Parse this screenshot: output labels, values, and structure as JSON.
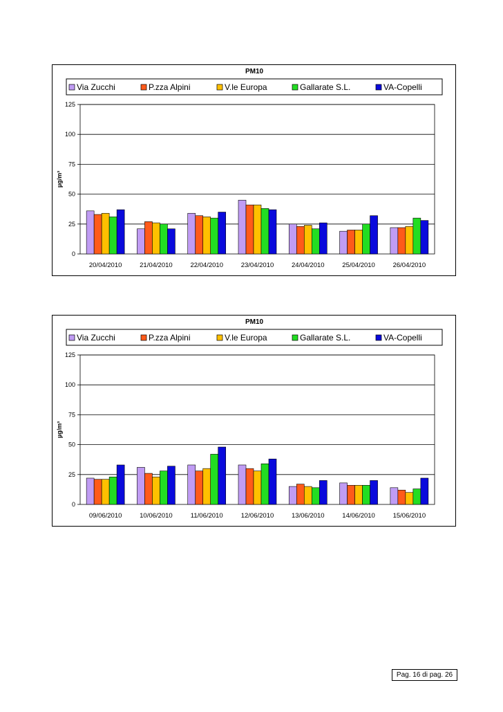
{
  "charts": [
    {
      "title": "PM10",
      "ylabel": "µg/m³",
      "ylim": [
        0,
        125
      ],
      "yticks": [
        "0",
        "25",
        "50",
        "75",
        "100",
        "125"
      ],
      "categories": [
        "20/04/2010",
        "21/04/2010",
        "22/04/2010",
        "23/04/2010",
        "24/04/2010",
        "25/04/2010",
        "26/04/2010"
      ],
      "series": [
        {
          "name": "Via Zucchi",
          "color": "#c09cf4",
          "values": [
            36,
            21,
            34,
            45,
            25,
            19,
            22
          ]
        },
        {
          "name": "P.zza Alpini",
          "color": "#ff5a1a",
          "values": [
            33,
            27,
            32,
            41,
            23,
            20,
            22
          ]
        },
        {
          "name": "V.le Europa",
          "color": "#ffc000",
          "values": [
            34,
            26,
            31,
            41,
            24,
            20,
            23
          ]
        },
        {
          "name": "Gallarate S.L.",
          "color": "#22dd22",
          "values": [
            31,
            25,
            30,
            38,
            21,
            25,
            30
          ]
        },
        {
          "name": "VA-Copelli",
          "color": "#0a0adc",
          "values": [
            37,
            21,
            35,
            37,
            26,
            32,
            28
          ]
        }
      ]
    },
    {
      "title": "PM10",
      "ylabel": "µg/m³",
      "ylim": [
        0,
        125
      ],
      "yticks": [
        "0",
        "25",
        "50",
        "75",
        "100",
        "125"
      ],
      "categories": [
        "09/06/2010",
        "10/06/2010",
        "11/06/2010",
        "12/06/2010",
        "13/06/2010",
        "14/06/2010",
        "15/06/2010"
      ],
      "series": [
        {
          "name": "Via Zucchi",
          "color": "#c09cf4",
          "values": [
            22,
            31,
            33,
            33,
            15,
            18,
            14
          ]
        },
        {
          "name": "P.zza Alpini",
          "color": "#ff5a1a",
          "values": [
            21,
            26,
            28,
            30,
            17,
            16,
            12
          ]
        },
        {
          "name": "V.le Europa",
          "color": "#ffc000",
          "values": [
            21,
            23,
            30,
            28,
            15,
            16,
            10
          ]
        },
        {
          "name": "Gallarate S.L.",
          "color": "#22dd22",
          "values": [
            23,
            28,
            42,
            34,
            14,
            16,
            13
          ]
        },
        {
          "name": "VA-Copelli",
          "color": "#0a0adc",
          "values": [
            33,
            32,
            48,
            38,
            20,
            20,
            22
          ]
        }
      ]
    }
  ],
  "chart_data": [
    {
      "type": "bar",
      "title": "PM10",
      "xlabel": "",
      "ylabel": "µg/m³",
      "ylim": [
        0,
        125
      ],
      "grid": true,
      "legend": "top",
      "categories": [
        "20/04/2010",
        "21/04/2010",
        "22/04/2010",
        "23/04/2010",
        "24/04/2010",
        "25/04/2010",
        "26/04/2010"
      ],
      "series": [
        {
          "name": "Via Zucchi",
          "values": [
            36,
            21,
            34,
            45,
            25,
            19,
            22
          ]
        },
        {
          "name": "P.zza Alpini",
          "values": [
            33,
            27,
            32,
            41,
            23,
            20,
            22
          ]
        },
        {
          "name": "V.le Europa",
          "values": [
            34,
            26,
            31,
            41,
            24,
            20,
            23
          ]
        },
        {
          "name": "Gallarate S.L.",
          "values": [
            31,
            25,
            30,
            38,
            21,
            25,
            30
          ]
        },
        {
          "name": "VA-Copelli",
          "values": [
            37,
            21,
            35,
            37,
            26,
            32,
            28
          ]
        }
      ]
    },
    {
      "type": "bar",
      "title": "PM10",
      "xlabel": "",
      "ylabel": "µg/m³",
      "ylim": [
        0,
        125
      ],
      "grid": true,
      "legend": "top",
      "categories": [
        "09/06/2010",
        "10/06/2010",
        "11/06/2010",
        "12/06/2010",
        "13/06/2010",
        "14/06/2010",
        "15/06/2010"
      ],
      "series": [
        {
          "name": "Via Zucchi",
          "values": [
            22,
            31,
            33,
            33,
            15,
            18,
            14
          ]
        },
        {
          "name": "P.zza Alpini",
          "values": [
            21,
            26,
            28,
            30,
            17,
            16,
            12
          ]
        },
        {
          "name": "V.le Europa",
          "values": [
            21,
            23,
            30,
            28,
            15,
            16,
            10
          ]
        },
        {
          "name": "Gallarate S.L.",
          "values": [
            23,
            28,
            42,
            34,
            14,
            16,
            13
          ]
        },
        {
          "name": "VA-Copelli",
          "values": [
            33,
            32,
            48,
            38,
            20,
            20,
            22
          ]
        }
      ]
    }
  ],
  "footer": {
    "page_label": "Pag. 16 di pag. 26"
  }
}
